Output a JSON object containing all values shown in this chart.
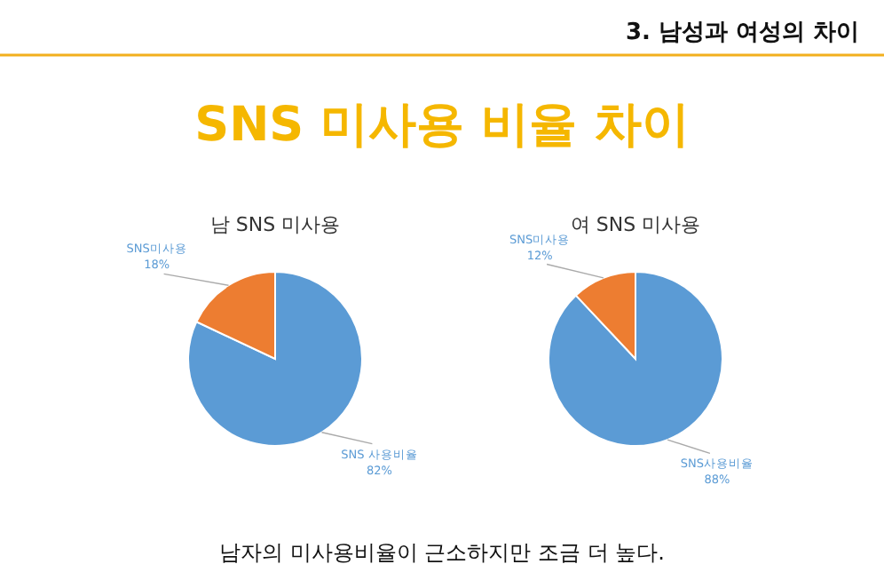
{
  "chart_data": [
    {
      "type": "other",
      "title": "SNS 미사용 비율 차이",
      "annotations": [
        "3. 남성과 여성의 차이",
        "남자의 미사용비율이 근소하지만 조금 더 높다."
      ]
    },
    {
      "type": "pie",
      "title": "남 SNS 미사용",
      "categories": [
        "SNS 사용비율",
        "SNS미사용"
      ],
      "values": [
        82,
        18
      ],
      "colors": [
        "#5b9bd5",
        "#ed7d31"
      ],
      "value_labels": [
        "82%",
        "18%"
      ]
    },
    {
      "type": "pie",
      "title": "여 SNS 미사용",
      "categories": [
        "SNS사용비율",
        "SNS미사용"
      ],
      "values": [
        88,
        12
      ],
      "colors": [
        "#5b9bd5",
        "#ed7d31"
      ],
      "value_labels": [
        "88%",
        "12%"
      ]
    }
  ]
}
